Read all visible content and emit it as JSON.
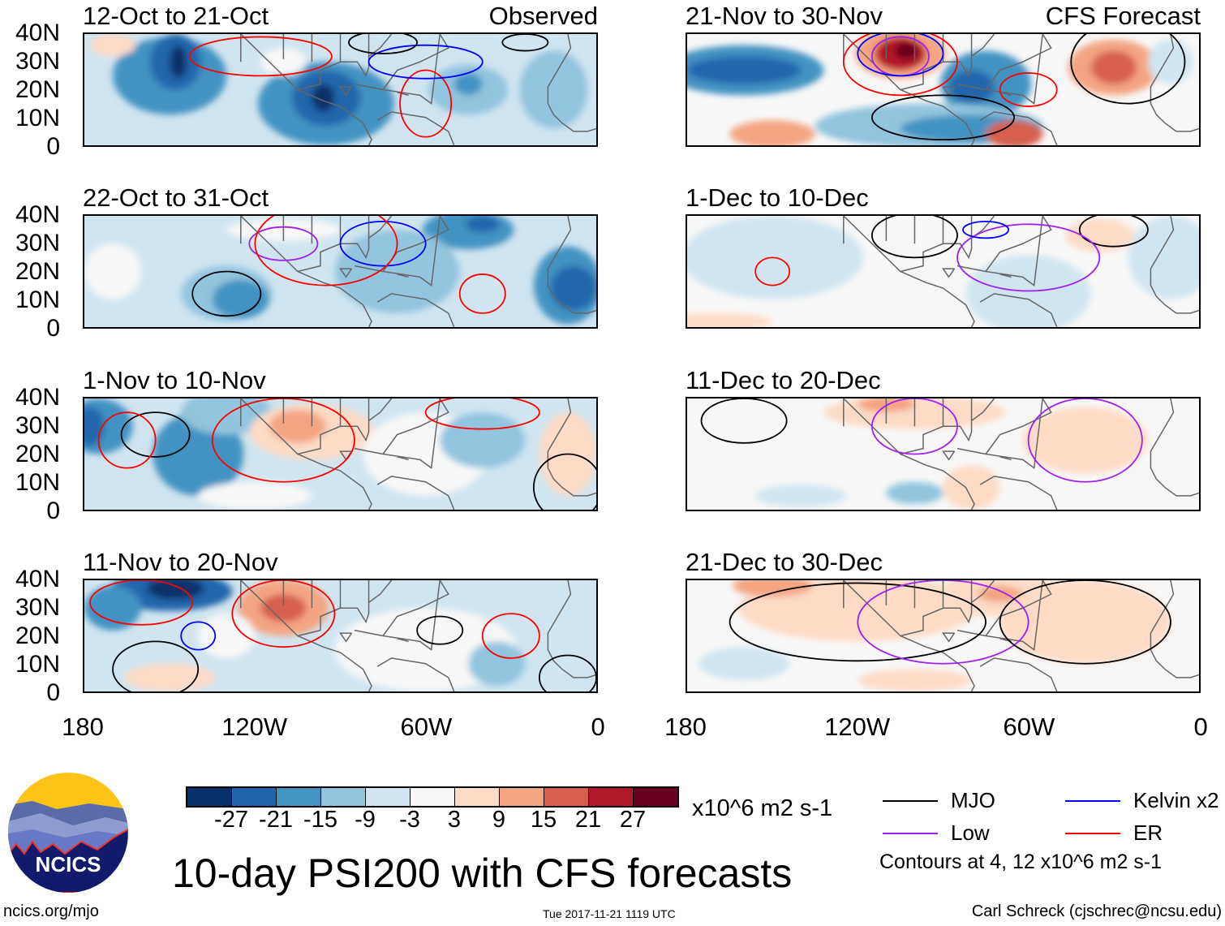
{
  "chart_data": {
    "type": "heatmap",
    "title": "10-day PSI200 with CFS forecasts",
    "variable": "PSI200 anomaly",
    "units": "x10^6 m2 s-1",
    "lat_ticks": [
      "40N",
      "30N",
      "20N",
      "10N",
      "0"
    ],
    "lon_ticks": [
      "180",
      "120W",
      "60W",
      "0"
    ],
    "xlim": [
      180,
      0
    ],
    "ylim": [
      0,
      40
    ],
    "panels": [
      {
        "title": "12-Oct to 21-Oct",
        "label": "Observed"
      },
      {
        "title": "21-Nov to 30-Nov",
        "label": "CFS Forecast"
      },
      {
        "title": "22-Oct to 31-Oct",
        "label": ""
      },
      {
        "title": "1-Dec to 10-Dec",
        "label": ""
      },
      {
        "title": "1-Nov to 10-Nov",
        "label": ""
      },
      {
        "title": "11-Dec to 20-Dec",
        "label": ""
      },
      {
        "title": "11-Nov to 20-Nov",
        "label": ""
      },
      {
        "title": "21-Dec to 30-Dec",
        "label": ""
      }
    ],
    "colorbar": {
      "labels": [
        "-27",
        "-21",
        "-15",
        "-9",
        "-3",
        "3",
        "9",
        "15",
        "21",
        "27"
      ],
      "colors": [
        "#08306b",
        "#2166ac",
        "#4393c3",
        "#92c5de",
        "#d1e5f0",
        "#f7f7f7",
        "#fddbc7",
        "#f4a582",
        "#d6604d",
        "#b2182b",
        "#67001f"
      ]
    },
    "legend": [
      {
        "label": "MJO",
        "color": "#000000"
      },
      {
        "label": "Kelvin x2",
        "color": "#0000ff"
      },
      {
        "label": "Low",
        "color": "#a020f0"
      },
      {
        "label": "ER",
        "color": "#ff0000"
      }
    ],
    "contour_note": "Contours at 4, 12 x10^6 m2 s-1"
  },
  "footer": {
    "url": "ncics.org/mjo",
    "timestamp": "Tue 2017-11-21 1119 UTC",
    "author": "Carl Schreck (cjschrec@ncsu.edu)",
    "logo_text": "NCICS"
  }
}
